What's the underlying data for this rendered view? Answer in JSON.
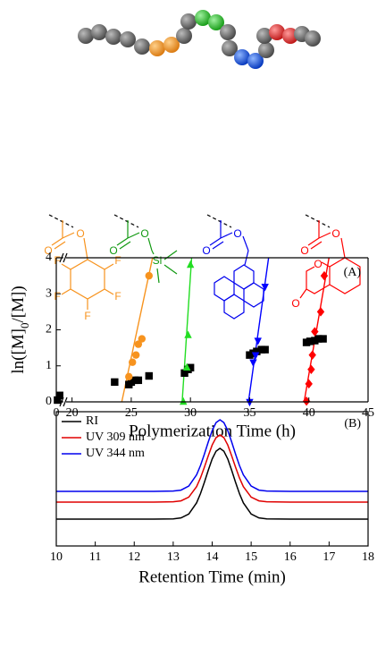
{
  "structures": [
    {
      "atoms": [
        "O",
        "O",
        "F",
        "F",
        "F",
        "F",
        "F"
      ]
    },
    {
      "atoms": [
        "O",
        "O",
        "Si"
      ]
    },
    {
      "atoms": [
        "O",
        "O"
      ]
    },
    {
      "atoms": [
        "O",
        "O",
        "O",
        "O"
      ]
    }
  ],
  "chart_data": [
    {
      "type": "scatter",
      "annotation": "(A)",
      "xlabel": "Polymerization Time (h)",
      "ylabel": [
        "ln([M]",
        "0",
        "/[M])"
      ],
      "xlim": [
        0,
        45
      ],
      "x_break": [
        1.5,
        19.5
      ],
      "xticks": [
        0,
        20,
        25,
        30,
        35,
        40,
        45
      ],
      "ylim": [
        0,
        4
      ],
      "yticks": [
        0,
        1,
        2,
        3,
        4
      ],
      "series": [
        {
          "color": "#000000",
          "marker": "square",
          "x": [
            0.3,
            0.8,
            23.6,
            24.8,
            25.0,
            25.3,
            25.6,
            26.5,
            29.5,
            29.8,
            30.0,
            35.0,
            35.3,
            35.6,
            36.0,
            36.3,
            39.8,
            40.1,
            40.5,
            40.8,
            41.2
          ],
          "values": [
            0.05,
            0.18,
            0.55,
            0.48,
            0.55,
            0.6,
            0.6,
            0.72,
            0.8,
            0.9,
            0.95,
            1.3,
            1.35,
            1.4,
            1.45,
            1.45,
            1.65,
            1.68,
            1.7,
            1.75,
            1.75
          ]
        },
        {
          "color": "#f7931e",
          "marker": "circle",
          "x": [
            24.8,
            25.1,
            25.4,
            25.6,
            25.9,
            26.5
          ],
          "values": [
            0.7,
            1.1,
            1.3,
            1.6,
            1.75,
            3.5
          ],
          "fit": {
            "x": [
              24.2,
              26.8
            ],
            "values": [
              0,
              4
            ]
          }
        },
        {
          "color": "#22dd22",
          "marker": "triangle-up",
          "x": [
            29.4,
            29.7,
            29.8,
            30.0
          ],
          "values": [
            0,
            0.95,
            1.85,
            3.8
          ],
          "fit": {
            "x": [
              29.3,
              30.1
            ],
            "values": [
              0,
              4
            ]
          }
        },
        {
          "color": "#0000ff",
          "marker": "triangle-down",
          "x": [
            35.0,
            35.3,
            35.5,
            35.7,
            36.3
          ],
          "values": [
            0,
            1.1,
            1.3,
            1.7,
            3.2
          ],
          "fit": {
            "x": [
              34.9,
              36.6
            ],
            "values": [
              0,
              4
            ]
          }
        },
        {
          "color": "#ff0000",
          "marker": "diamond",
          "x": [
            39.8,
            40.0,
            40.2,
            40.3,
            40.5,
            41.0,
            41.3
          ],
          "values": [
            0.02,
            0.5,
            0.9,
            1.3,
            1.95,
            2.5,
            3.5
          ],
          "fit": {
            "x": [
              39.6,
              41.7
            ],
            "values": [
              0,
              4
            ]
          }
        }
      ]
    },
    {
      "type": "line",
      "annotation": "(B)",
      "xlabel": "Retention Time (min)",
      "xlim": [
        10,
        18
      ],
      "xticks": [
        10,
        11,
        12,
        13,
        14,
        15,
        16,
        17,
        18
      ],
      "ylim": [
        0,
        1
      ],
      "legend": "upper left",
      "x": [
        10,
        11,
        12,
        12.5,
        13,
        13.2,
        13.4,
        13.6,
        13.7,
        13.8,
        13.9,
        14.0,
        14.1,
        14.2,
        14.3,
        14.4,
        14.5,
        14.6,
        14.7,
        14.8,
        15.0,
        15.2,
        15.4,
        16,
        17,
        18
      ],
      "series": [
        {
          "name": "RI",
          "color": "#000000",
          "values": [
            0.2,
            0.2,
            0.2,
            0.2,
            0.202,
            0.209,
            0.238,
            0.321,
            0.39,
            0.474,
            0.564,
            0.648,
            0.706,
            0.727,
            0.706,
            0.648,
            0.564,
            0.474,
            0.39,
            0.321,
            0.238,
            0.209,
            0.202,
            0.2,
            0.2,
            0.2
          ]
        },
        {
          "name": "UV 309 nm",
          "color": "#e00000",
          "values": [
            0.327,
            0.327,
            0.327,
            0.327,
            0.329,
            0.336,
            0.364,
            0.442,
            0.507,
            0.587,
            0.672,
            0.752,
            0.807,
            0.827,
            0.807,
            0.752,
            0.672,
            0.587,
            0.507,
            0.442,
            0.364,
            0.336,
            0.329,
            0.327,
            0.327,
            0.327
          ]
        },
        {
          "name": "UV 344 nm",
          "color": "#0000ee",
          "values": [
            0.407,
            0.407,
            0.407,
            0.407,
            0.409,
            0.416,
            0.446,
            0.53,
            0.599,
            0.684,
            0.775,
            0.86,
            0.919,
            0.94,
            0.919,
            0.86,
            0.775,
            0.684,
            0.599,
            0.53,
            0.446,
            0.416,
            0.409,
            0.407,
            0.407,
            0.407
          ]
        }
      ]
    }
  ]
}
